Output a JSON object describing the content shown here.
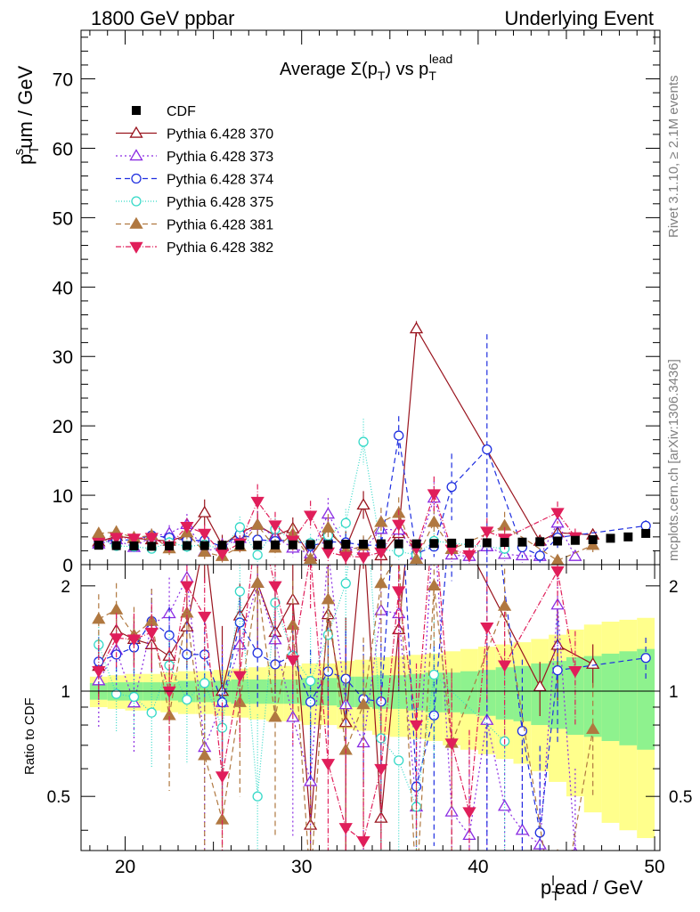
{
  "header": {
    "left": "1800 GeV ppbar",
    "right": "Underlying Event"
  },
  "side": {
    "rivet": "Rivet 3.1.10, ≥ 2.1M events",
    "mcplots": "mcplots.cern.ch [arXiv:1306.3436]"
  },
  "colors": {
    "cdf": "#000000",
    "p370": "#99141e",
    "p373": "#8a2be2",
    "p374": "#1f2fe0",
    "p375": "#35d9c8",
    "p381": "#b07840",
    "p382": "#e01e5a",
    "band_inner": "#8ef28e",
    "band_outer": "#ffff8c"
  },
  "chart_data": {
    "type": "line",
    "title": "Average Σ(p_T) vs p_T^lead",
    "xlabel": "p_T^lead / GeV",
    "ylabel": "p_T^sum / GeV",
    "ratio_ylabel": "Ratio to CDF",
    "xlim": [
      17.5,
      50.3
    ],
    "ylim": [
      0,
      77
    ],
    "ratio_ylim": [
      0.35,
      2.3
    ],
    "x_ticks": [
      20,
      30,
      40,
      50
    ],
    "y_ticks": [
      0,
      10,
      20,
      30,
      40,
      50,
      60,
      70
    ],
    "ratio_ticks": [
      0.5,
      1,
      2
    ],
    "legend_position": "top-left",
    "grid": false,
    "x": [
      18.5,
      19.5,
      20.5,
      21.5,
      22.5,
      23.5,
      24.5,
      25.5,
      26.5,
      27.5,
      28.5,
      29.5,
      30.5,
      31.5,
      32.5,
      33.5,
      34.5,
      35.5,
      36.5,
      37.5,
      38.5,
      39.5,
      40.5,
      41.5,
      42.5,
      43.5,
      44.5,
      45.5,
      46.5,
      47.5,
      48.5,
      49.5
    ],
    "reference": {
      "name": "CDF",
      "values": [
        2.8,
        2.75,
        2.7,
        2.65,
        2.7,
        2.75,
        2.75,
        2.8,
        2.8,
        2.8,
        2.85,
        2.85,
        2.9,
        2.9,
        2.95,
        2.95,
        3.0,
        3.0,
        3.0,
        3.05,
        3.1,
        3.1,
        3.15,
        3.2,
        3.25,
        3.3,
        3.4,
        3.5,
        3.6,
        3.8,
        4.0,
        4.5
      ],
      "band_inner": [
        0.055,
        0.06,
        0.06,
        0.06,
        0.06,
        0.07,
        0.07,
        0.07,
        0.08,
        0.08,
        0.08,
        0.08,
        0.09,
        0.09,
        0.1,
        0.1,
        0.11,
        0.11,
        0.12,
        0.13,
        0.13,
        0.14,
        0.15,
        0.17,
        0.18,
        0.2,
        0.22,
        0.25,
        0.26,
        0.28,
        0.3,
        0.32
      ],
      "band_outer": [
        0.1,
        0.11,
        0.12,
        0.12,
        0.13,
        0.14,
        0.14,
        0.15,
        0.16,
        0.17,
        0.18,
        0.18,
        0.2,
        0.2,
        0.22,
        0.23,
        0.25,
        0.26,
        0.27,
        0.28,
        0.3,
        0.32,
        0.34,
        0.36,
        0.38,
        0.41,
        0.45,
        0.5,
        0.55,
        0.58,
        0.6,
        0.62
      ]
    },
    "series": [
      {
        "name": "Pythia 6.428 370",
        "key": "p370",
        "marker": "tri-up-open",
        "dash": "",
        "x": [
          18.5,
          19.5,
          20.5,
          21.5,
          22.5,
          23.5,
          24.5,
          25.5,
          26.5,
          27.5,
          28.5,
          29.5,
          30.5,
          31.5,
          32.5,
          33.5,
          34.5,
          35.5,
          36.5,
          43.5,
          44.5,
          46.5
        ],
        "values": [
          3.3,
          4.1,
          3.8,
          3.6,
          3.4,
          4.2,
          7.5,
          2.8,
          4.6,
          5.7,
          4.2,
          5.2,
          1.2,
          4.8,
          2.4,
          8.6,
          1.3,
          4.5,
          34,
          3.4,
          4.6,
          4.3
        ],
        "err": [
          0.6,
          0.6,
          0.6,
          0.6,
          0.6,
          1.0,
          1.9,
          1.5,
          1.1,
          2.0,
          1.4,
          1.6,
          1.2,
          1.9,
          2.4,
          2.0,
          1.3,
          1.5,
          1.1,
          0.6,
          1.4,
          0.6
        ]
      },
      {
        "name": "Pythia 6.428 373",
        "key": "p373",
        "marker": "tri-up-open",
        "dash": "2,3",
        "x": [
          18.5,
          19.5,
          20.5,
          21.5,
          22.5,
          23.5,
          24.5,
          25.5,
          26.5,
          27.5,
          28.5,
          29.5,
          30.5,
          31.5,
          32.5,
          33.5,
          34.5,
          35.5,
          36.5,
          37.5,
          38.5,
          39.5,
          40.5,
          41.5,
          42.5,
          43.5,
          44.5,
          45.5
        ],
        "values": [
          3.0,
          3.6,
          2.5,
          4.1,
          4.5,
          5.8,
          1.9,
          2.6,
          3.8,
          5.7,
          4.0,
          2.4,
          1.6,
          7.3,
          2.7,
          2.1,
          5.1,
          5.0,
          1.4,
          9.6,
          1.4,
          1.2,
          2.6,
          1.5,
          1.3,
          1.2,
          6.0,
          1.2
        ],
        "err": [
          0.8,
          0.9,
          0.7,
          1.1,
          1.2,
          1.5,
          1.0,
          1.2,
          1.6,
          2.0,
          1.4,
          1.3,
          1.0,
          2.3,
          1.6,
          1.5,
          2.0,
          2.0,
          1.0,
          2.4,
          1.0,
          1.0,
          1.6,
          1.0,
          1.0,
          0.9,
          1.6,
          0.9
        ]
      },
      {
        "name": "Pythia 6.428 374",
        "key": "p374",
        "marker": "circle-open",
        "dash": "6,4",
        "x": [
          18.5,
          19.5,
          20.5,
          21.5,
          22.5,
          23.5,
          24.5,
          25.5,
          26.5,
          27.5,
          28.5,
          29.5,
          30.5,
          31.5,
          32.5,
          33.5,
          34.5,
          35.5,
          36.5,
          37.5,
          38.5,
          40.5,
          42.5,
          43.5,
          44.5,
          49.5
        ],
        "values": [
          3.4,
          3.5,
          3.6,
          4.2,
          3.9,
          3.5,
          3.5,
          2.6,
          4.4,
          3.6,
          3.4,
          3.6,
          2.7,
          3.3,
          3.2,
          2.8,
          2.8,
          18.6,
          1.6,
          2.6,
          11.2,
          16.6,
          2.5,
          1.3,
          3.9,
          5.6
        ],
        "err": [
          0.6,
          0.6,
          0.6,
          0.7,
          0.8,
          0.9,
          0.9,
          0.9,
          1.0,
          1.1,
          1.0,
          1.0,
          1.1,
          1.2,
          1.2,
          1.2,
          1.3,
          2.8,
          1.1,
          1.5,
          4.8,
          16.6,
          1.5,
          1.0,
          1.5,
          0.8
        ]
      },
      {
        "name": "Pythia 6.428 375",
        "key": "p375",
        "marker": "circle-open",
        "dash": "1,2",
        "x": [
          18.5,
          19.5,
          20.5,
          21.5,
          22.5,
          23.5,
          24.5,
          25.5,
          26.5,
          27.5,
          28.5,
          29.5,
          30.5,
          31.5,
          32.5,
          33.5,
          34.5,
          35.5,
          36.5,
          37.5,
          41.5
        ],
        "values": [
          3.8,
          2.7,
          2.6,
          2.3,
          3.2,
          2.6,
          2.9,
          2.2,
          5.4,
          1.4,
          5.1,
          3.6,
          3.1,
          4.2,
          6.0,
          17.7,
          2.2,
          1.9,
          1.4,
          3.4,
          2.3
        ],
        "err": [
          0.7,
          0.6,
          0.6,
          0.7,
          0.8,
          0.9,
          1.0,
          1.0,
          1.5,
          1.0,
          1.6,
          1.3,
          1.3,
          1.6,
          2.0,
          3.3,
          1.3,
          1.2,
          1.0,
          1.5,
          1.3
        ]
      },
      {
        "name": "Pythia 6.428 381",
        "key": "p381",
        "marker": "tri-up-filled",
        "dash": "6,4",
        "x": [
          18.5,
          19.5,
          20.5,
          21.5,
          22.5,
          23.5,
          24.5,
          25.5,
          26.5,
          27.5,
          28.5,
          29.5,
          30.5,
          31.5,
          32.5,
          33.5,
          34.5,
          35.5,
          36.5,
          37.5,
          38.5,
          41.5,
          44.5,
          46.5
        ],
        "values": [
          4.5,
          4.7,
          3.9,
          4.2,
          2.3,
          4.6,
          1.8,
          1.2,
          2.6,
          5.7,
          2.4,
          4.4,
          0.8,
          5.3,
          2.0,
          2.7,
          6.1,
          7.4,
          0.8,
          6.1,
          2.2,
          5.6,
          0.6,
          2.8
        ],
        "err": [
          0.8,
          0.9,
          0.8,
          1.0,
          0.9,
          1.1,
          1.0,
          0.9,
          1.2,
          1.8,
          1.3,
          1.5,
          0.8,
          2.0,
          1.4,
          1.5,
          2.1,
          2.3,
          0.8,
          2.0,
          1.4,
          2.0,
          0.6,
          1.0
        ]
      },
      {
        "name": "Pythia 6.428 382",
        "key": "p382",
        "marker": "tri-down-filled",
        "dash": "6,2,1,2",
        "x": [
          18.5,
          19.5,
          20.5,
          21.5,
          22.5,
          23.5,
          24.5,
          25.5,
          26.5,
          27.5,
          28.5,
          29.5,
          30.5,
          31.5,
          32.5,
          33.5,
          34.5,
          35.5,
          36.5,
          37.5,
          38.5,
          39.5,
          40.5,
          41.5,
          44.5,
          45.5
        ],
        "values": [
          3.2,
          3.9,
          3.8,
          3.9,
          2.7,
          5.5,
          4.5,
          1.6,
          3.1,
          9.1,
          5.7,
          3.5,
          7.1,
          1.8,
          1.2,
          1.1,
          1.8,
          5.8,
          2.4,
          10.2,
          2.2,
          1.4,
          4.8,
          3.8,
          7.5,
          4.0
        ],
        "err": [
          0.6,
          0.7,
          0.7,
          0.8,
          0.9,
          1.2,
          1.3,
          1.0,
          1.1,
          2.5,
          1.9,
          1.5,
          2.1,
          1.3,
          1.1,
          1.0,
          1.3,
          2.1,
          1.2,
          2.5,
          1.3,
          1.0,
          1.9,
          1.6,
          1.6,
          1.2
        ]
      }
    ]
  }
}
